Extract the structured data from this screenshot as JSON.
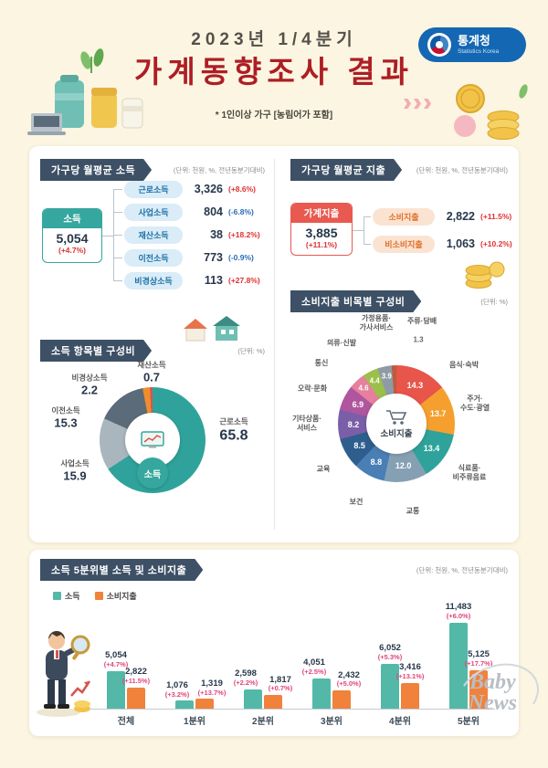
{
  "colors": {
    "background": "#FBF5E1",
    "title_red": "#AE1E24",
    "ribbon": "#3D5065",
    "teal": "#35A79E",
    "red": "#E8594F",
    "chip_blue_bg": "#D9ECF7",
    "chip_blue_text": "#1D6FA5",
    "chip_orange_bg": "#FBE3D2",
    "chip_orange_text": "#E0702A",
    "positive": "#E03131",
    "negative": "#2B6CB8",
    "bar_change_pink": "#E0457B",
    "logo_blue": "#1467B3"
  },
  "header": {
    "period": "2023년 1/4분기",
    "title": "가계동향조사 결과",
    "note": "* 1인이상 가구 [농림어가 포함]",
    "logo": {
      "kr": "통계청",
      "en": "Statistics Korea"
    }
  },
  "income_section": {
    "title": "가구당 월평균 소득",
    "unit": "(단위: 천원, %, 전년동분기대비)",
    "total": {
      "label": "소득",
      "value": "5,054",
      "change": "(+4.7%)"
    },
    "items": [
      {
        "label": "근로소득",
        "value": "3,326",
        "change": "(+8.6%)",
        "direction": "up"
      },
      {
        "label": "사업소득",
        "value": "804",
        "change": "(-6.8%)",
        "direction": "down"
      },
      {
        "label": "재산소득",
        "value": "38",
        "change": "(+18.2%)",
        "direction": "up"
      },
      {
        "label": "이전소득",
        "value": "773",
        "change": "(-0.9%)",
        "direction": "down"
      },
      {
        "label": "비경상소득",
        "value": "113",
        "change": "(+27.8%)",
        "direction": "up"
      }
    ]
  },
  "expenditure_section": {
    "title": "가구당 월평균 지출",
    "unit": "(단위: 천원, %, 전년동분기대비)",
    "total": {
      "label": "가계지출",
      "value": "3,885",
      "change": "(+11.1%)"
    },
    "items": [
      {
        "label": "소비지출",
        "value": "2,822",
        "change": "(+11.5%)",
        "direction": "up"
      },
      {
        "label": "비소비지출",
        "value": "1,063",
        "change": "(+10.2%)",
        "direction": "up"
      }
    ]
  },
  "footer": {
    "logo_line1": "Baby",
    "logo_line2": "News"
  },
  "chart_data": [
    {
      "type": "pie",
      "variant": "donut",
      "title": "소득 항목별 구성비",
      "unit": "(단위: %)",
      "center_label": "소득",
      "segments": [
        {
          "label": "근로소득",
          "value": 65.8,
          "color": "#2FA39B"
        },
        {
          "label": "사업소득",
          "value": 15.9,
          "color": "#A9B6BD"
        },
        {
          "label": "이전소득",
          "value": 15.3,
          "color": "#5C6B79"
        },
        {
          "label": "비경상소득",
          "value": 2.2,
          "color": "#F08C2E"
        },
        {
          "label": "재산소득",
          "value": 0.7,
          "color": "#D9534F"
        }
      ]
    },
    {
      "type": "pie",
      "variant": "donut",
      "title": "소비지출 비목별 구성비",
      "unit": "(단위: %)",
      "center_label": "소비지출",
      "segments": [
        {
          "label": "음식·숙박",
          "value": 14.3,
          "color": "#E8554A"
        },
        {
          "label": "주거·수도·광열",
          "value": 13.7,
          "color": "#F5A02E"
        },
        {
          "label": "식료품·비주류음료",
          "value": 13.4,
          "color": "#2FA39B"
        },
        {
          "label": "교통",
          "value": 12.0,
          "color": "#86A0B3"
        },
        {
          "label": "보건",
          "value": 8.8,
          "color": "#4A7FB5"
        },
        {
          "label": "교육",
          "value": 8.5,
          "color": "#2E5E8E"
        },
        {
          "label": "기타상품·서비스",
          "value": 8.2,
          "color": "#7A5FA8"
        },
        {
          "label": "오락·문화",
          "value": 6.9,
          "color": "#B0569E"
        },
        {
          "label": "통신",
          "value": 4.6,
          "color": "#E77F9E"
        },
        {
          "label": "의류·신발",
          "value": 4.4,
          "color": "#9BBF4B"
        },
        {
          "label": "가정용품·가사서비스",
          "value": 3.9,
          "color": "#8E9AA6"
        },
        {
          "label": "주류·담배",
          "value": 1.3,
          "color": "#C05A3A"
        }
      ]
    },
    {
      "type": "bar",
      "title": "소득 5분위별 소득 및 소비지출",
      "unit": "(단위: 천원, %, 전년동분기대비)",
      "categories": [
        "전체",
        "1분위",
        "2분위",
        "3분위",
        "4분위",
        "5분위"
      ],
      "series": [
        {
          "name": "소득",
          "color": "#54B8A8",
          "values": [
            5054,
            1076,
            2598,
            4051,
            6052,
            11483
          ],
          "display": [
            "5,054",
            "1,076",
            "2,598",
            "4,051",
            "6,052",
            "11,483"
          ],
          "changes": [
            "(+4.7%)",
            "(+3.2%)",
            "(+2.2%)",
            "(+2.5%)",
            "(+5.3%)",
            "(+6.0%)"
          ]
        },
        {
          "name": "소비지출",
          "color": "#F0823C",
          "values": [
            2822,
            1319,
            1817,
            2432,
            3416,
            5125
          ],
          "display": [
            "2,822",
            "1,319",
            "1,817",
            "2,432",
            "3,416",
            "5,125"
          ],
          "changes": [
            "(+11.5%)",
            "(+13.7%)",
            "(+0.7%)",
            "(+5.0%)",
            "(+13.1%)",
            "(+17.7%)"
          ]
        }
      ],
      "ylim": [
        0,
        12000
      ],
      "grid": false,
      "legend_position": "top-left"
    }
  ]
}
